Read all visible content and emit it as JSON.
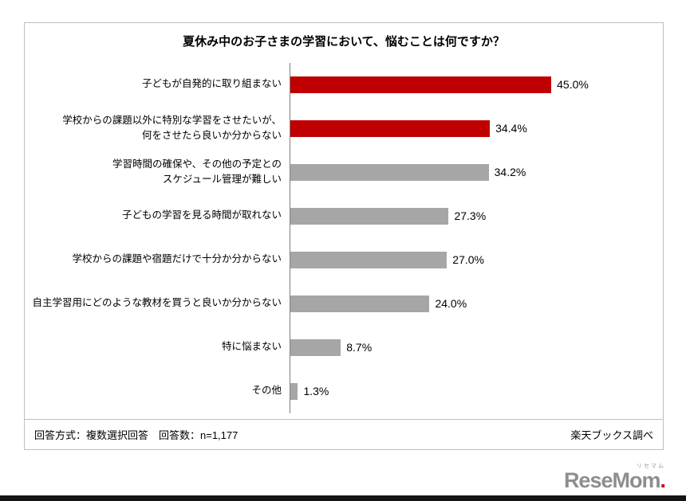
{
  "title": "夏休み中のお子さまの学習において、悩むことは何ですか？",
  "chart_data": {
    "type": "bar",
    "orientation": "horizontal",
    "title": "夏休み中のお子さまの学習において、悩むことは何ですか？",
    "categories": [
      "子どもが自発的に取り組まない",
      "学校からの課題以外に特別な学習をさせたいが、\n何をさせたら良いか分からない",
      "学習時間の確保や、その他の予定との\nスケジュール管理が難しい",
      "子どもの学習を見る時間が取れない",
      "学校からの課題や宿題だけで十分か分からない",
      "自主学習用にどのような教材を買うと良いか分からない",
      "特に悩まない",
      "その他"
    ],
    "values": [
      45.0,
      34.4,
      34.2,
      27.3,
      27.0,
      24.0,
      8.7,
      1.3
    ],
    "value_labels": [
      "45.0%",
      "34.4%",
      "34.2%",
      "27.3%",
      "27.0%",
      "24.0%",
      "8.7%",
      "1.3%"
    ],
    "bar_colors": [
      "#c00000",
      "#c00000",
      "#a6a6a6",
      "#a6a6a6",
      "#a6a6a6",
      "#a6a6a6",
      "#a6a6a6",
      "#a6a6a6"
    ],
    "xlim": [
      0,
      50
    ],
    "grid": false,
    "legend": "none"
  },
  "footer": {
    "left": "回答方式：複数選択回答　回答数：n=1,177",
    "right": "楽天ブックス調べ"
  },
  "logo": {
    "ruby": "リセマム",
    "text": "ReseMom",
    "dot": "."
  },
  "colors": {
    "accent_red": "#c00000",
    "bar_gray": "#a6a6a6",
    "border_gray": "#bfbfbf"
  }
}
